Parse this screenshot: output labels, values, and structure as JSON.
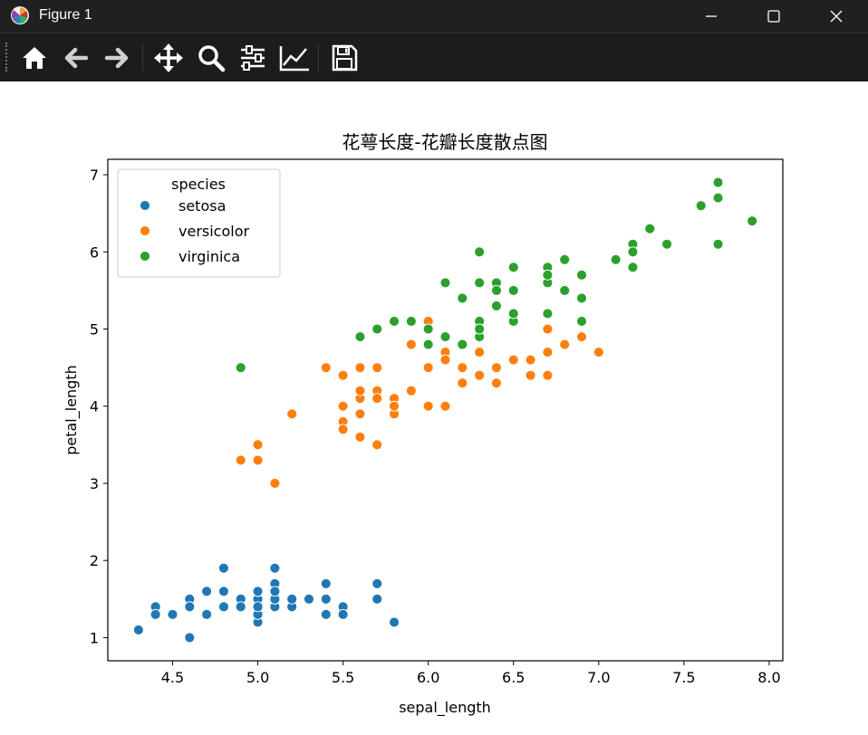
{
  "window": {
    "title": "Figure 1",
    "controls": [
      "minimize",
      "maximize",
      "close"
    ]
  },
  "toolbar": {
    "tools": [
      {
        "name": "home-icon",
        "label": "Home"
      },
      {
        "name": "back-icon",
        "label": "Back"
      },
      {
        "name": "forward-icon",
        "label": "Forward"
      },
      {
        "name": "pan-icon",
        "label": "Pan"
      },
      {
        "name": "zoom-icon",
        "label": "Zoom"
      },
      {
        "name": "configure-subplots-icon",
        "label": "Subplots"
      },
      {
        "name": "edit-axis-icon",
        "label": "Customize"
      },
      {
        "name": "save-icon",
        "label": "Save"
      }
    ]
  },
  "chart_data": {
    "type": "scatter",
    "title": "花萼长度-花瓣长度散点图",
    "xlabel": "sepal_length",
    "ylabel": "petal_length",
    "xlim": [
      4.12,
      8.08
    ],
    "ylim": [
      0.7,
      7.2
    ],
    "xticks": [
      "4.5",
      "5.0",
      "5.5",
      "6.0",
      "6.5",
      "7.0",
      "7.5",
      "8.0"
    ],
    "xtick_values": [
      4.5,
      5.0,
      5.5,
      6.0,
      6.5,
      7.0,
      7.5,
      8.0
    ],
    "yticks": [
      "1",
      "2",
      "3",
      "4",
      "5",
      "6",
      "7"
    ],
    "ytick_values": [
      1,
      2,
      3,
      4,
      5,
      6,
      7
    ],
    "grid": false,
    "legend": {
      "title": "species",
      "placement": "upper-left"
    },
    "series": [
      {
        "name": "setosa",
        "color": "#1f77b4",
        "points": [
          [
            5.1,
            1.4
          ],
          [
            4.9,
            1.4
          ],
          [
            4.7,
            1.3
          ],
          [
            4.6,
            1.5
          ],
          [
            5.0,
            1.4
          ],
          [
            5.4,
            1.7
          ],
          [
            4.6,
            1.4
          ],
          [
            5.0,
            1.5
          ],
          [
            4.4,
            1.4
          ],
          [
            4.9,
            1.5
          ],
          [
            5.4,
            1.5
          ],
          [
            4.8,
            1.6
          ],
          [
            4.8,
            1.4
          ],
          [
            4.3,
            1.1
          ],
          [
            5.8,
            1.2
          ],
          [
            5.7,
            1.5
          ],
          [
            5.4,
            1.3
          ],
          [
            5.1,
            1.4
          ],
          [
            5.7,
            1.7
          ],
          [
            5.1,
            1.5
          ],
          [
            5.4,
            1.7
          ],
          [
            5.1,
            1.5
          ],
          [
            4.6,
            1.0
          ],
          [
            5.1,
            1.7
          ],
          [
            4.8,
            1.9
          ],
          [
            5.0,
            1.6
          ],
          [
            5.0,
            1.6
          ],
          [
            5.2,
            1.5
          ],
          [
            5.2,
            1.4
          ],
          [
            4.7,
            1.6
          ],
          [
            4.8,
            1.6
          ],
          [
            5.4,
            1.5
          ],
          [
            5.2,
            1.5
          ],
          [
            5.5,
            1.4
          ],
          [
            4.9,
            1.5
          ],
          [
            5.0,
            1.2
          ],
          [
            5.5,
            1.3
          ],
          [
            4.9,
            1.4
          ],
          [
            4.4,
            1.3
          ],
          [
            5.1,
            1.5
          ],
          [
            5.0,
            1.3
          ],
          [
            4.5,
            1.3
          ],
          [
            4.4,
            1.3
          ],
          [
            5.0,
            1.6
          ],
          [
            5.1,
            1.9
          ],
          [
            4.8,
            1.4
          ],
          [
            5.1,
            1.6
          ],
          [
            4.6,
            1.4
          ],
          [
            5.3,
            1.5
          ],
          [
            5.0,
            1.4
          ]
        ]
      },
      {
        "name": "versicolor",
        "color": "#ff7f0e",
        "points": [
          [
            7.0,
            4.7
          ],
          [
            6.4,
            4.5
          ],
          [
            6.9,
            4.9
          ],
          [
            5.5,
            4.0
          ],
          [
            6.5,
            4.6
          ],
          [
            5.7,
            4.5
          ],
          [
            6.3,
            4.7
          ],
          [
            4.9,
            3.3
          ],
          [
            6.6,
            4.6
          ],
          [
            5.2,
            3.9
          ],
          [
            5.0,
            3.5
          ],
          [
            5.9,
            4.2
          ],
          [
            6.0,
            4.0
          ],
          [
            6.1,
            4.7
          ],
          [
            5.6,
            3.6
          ],
          [
            6.7,
            4.4
          ],
          [
            5.6,
            4.5
          ],
          [
            5.8,
            4.1
          ],
          [
            6.2,
            4.5
          ],
          [
            5.6,
            3.9
          ],
          [
            5.9,
            4.8
          ],
          [
            6.1,
            4.0
          ],
          [
            6.3,
            4.9
          ],
          [
            6.1,
            4.7
          ],
          [
            6.4,
            4.3
          ],
          [
            6.6,
            4.4
          ],
          [
            6.8,
            4.8
          ],
          [
            6.7,
            5.0
          ],
          [
            6.0,
            4.5
          ],
          [
            5.7,
            3.5
          ],
          [
            5.5,
            3.8
          ],
          [
            5.5,
            3.7
          ],
          [
            5.8,
            3.9
          ],
          [
            6.0,
            5.1
          ],
          [
            5.4,
            4.5
          ],
          [
            6.0,
            4.5
          ],
          [
            6.7,
            4.7
          ],
          [
            6.3,
            4.4
          ],
          [
            5.6,
            4.1
          ],
          [
            5.5,
            4.0
          ],
          [
            5.5,
            4.4
          ],
          [
            6.1,
            4.6
          ],
          [
            5.8,
            4.0
          ],
          [
            5.0,
            3.3
          ],
          [
            5.6,
            4.2
          ],
          [
            5.7,
            4.2
          ],
          [
            5.7,
            4.2
          ],
          [
            6.2,
            4.3
          ],
          [
            5.1,
            3.0
          ],
          [
            5.7,
            4.1
          ]
        ]
      },
      {
        "name": "virginica",
        "color": "#2ca02c",
        "points": [
          [
            6.3,
            6.0
          ],
          [
            5.8,
            5.1
          ],
          [
            7.1,
            5.9
          ],
          [
            6.3,
            5.6
          ],
          [
            6.5,
            5.8
          ],
          [
            7.6,
            6.6
          ],
          [
            4.9,
            4.5
          ],
          [
            7.3,
            6.3
          ],
          [
            6.7,
            5.8
          ],
          [
            7.2,
            6.1
          ],
          [
            6.5,
            5.1
          ],
          [
            6.4,
            5.3
          ],
          [
            6.8,
            5.5
          ],
          [
            5.7,
            5.0
          ],
          [
            5.8,
            5.1
          ],
          [
            6.4,
            5.3
          ],
          [
            6.5,
            5.5
          ],
          [
            7.7,
            6.7
          ],
          [
            7.7,
            6.9
          ],
          [
            6.0,
            5.0
          ],
          [
            6.9,
            5.7
          ],
          [
            5.6,
            4.9
          ],
          [
            7.7,
            6.7
          ],
          [
            6.3,
            4.9
          ],
          [
            6.7,
            5.7
          ],
          [
            7.2,
            6.0
          ],
          [
            6.2,
            4.8
          ],
          [
            6.1,
            4.9
          ],
          [
            6.4,
            5.6
          ],
          [
            7.2,
            5.8
          ],
          [
            7.4,
            6.1
          ],
          [
            7.9,
            6.4
          ],
          [
            6.4,
            5.6
          ],
          [
            6.3,
            5.1
          ],
          [
            6.1,
            5.6
          ],
          [
            7.7,
            6.1
          ],
          [
            6.3,
            5.6
          ],
          [
            6.4,
            5.5
          ],
          [
            6.0,
            4.8
          ],
          [
            6.9,
            5.4
          ],
          [
            6.7,
            5.6
          ],
          [
            6.9,
            5.1
          ],
          [
            5.8,
            5.1
          ],
          [
            6.8,
            5.9
          ],
          [
            6.7,
            5.7
          ],
          [
            6.7,
            5.2
          ],
          [
            6.3,
            5.0
          ],
          [
            6.5,
            5.2
          ],
          [
            6.2,
            5.4
          ],
          [
            5.9,
            5.1
          ]
        ]
      }
    ]
  }
}
